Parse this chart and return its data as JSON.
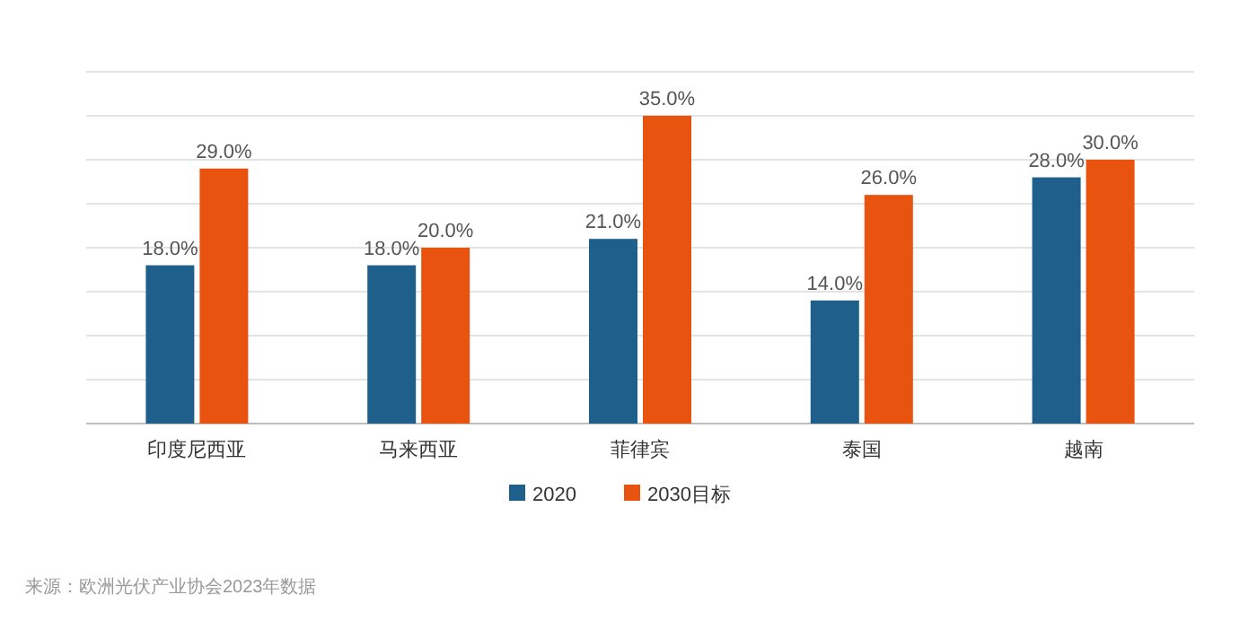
{
  "chart_data": {
    "type": "bar",
    "categories": [
      "印度尼西亚",
      "马来西亚",
      "菲律宾",
      "泰国",
      "越南"
    ],
    "series": [
      {
        "name": "2020",
        "color": "#1f5f8b",
        "values": [
          18,
          18,
          21,
          14,
          28
        ],
        "value_labels": [
          "18.0%",
          "18.0%",
          "21.0%",
          "14.0%",
          "28.0%"
        ]
      },
      {
        "name": "2030目标",
        "color": "#e8540f",
        "values": [
          29,
          20,
          35,
          26,
          30
        ],
        "value_labels": [
          "29.0%",
          "20.0%",
          "35.0%",
          "26.0%",
          "30.0%"
        ]
      }
    ],
    "ylim": [
      0,
      40
    ],
    "yticks": [
      {
        "value": 0,
        "label": null
      },
      {
        "value": 5,
        "label": null
      },
      {
        "value": 10,
        "label": null
      },
      {
        "value": 15,
        "label": null
      },
      {
        "value": 20,
        "label": null
      },
      {
        "value": 25,
        "label": null
      },
      {
        "value": 30,
        "label": null
      },
      {
        "value": 35,
        "label": null
      },
      {
        "value": 40,
        "label": null
      }
    ],
    "grid": "y",
    "legend": "bottom",
    "annotations": [
      "来源：欧洲光伏产业协会2023年数据"
    ]
  }
}
